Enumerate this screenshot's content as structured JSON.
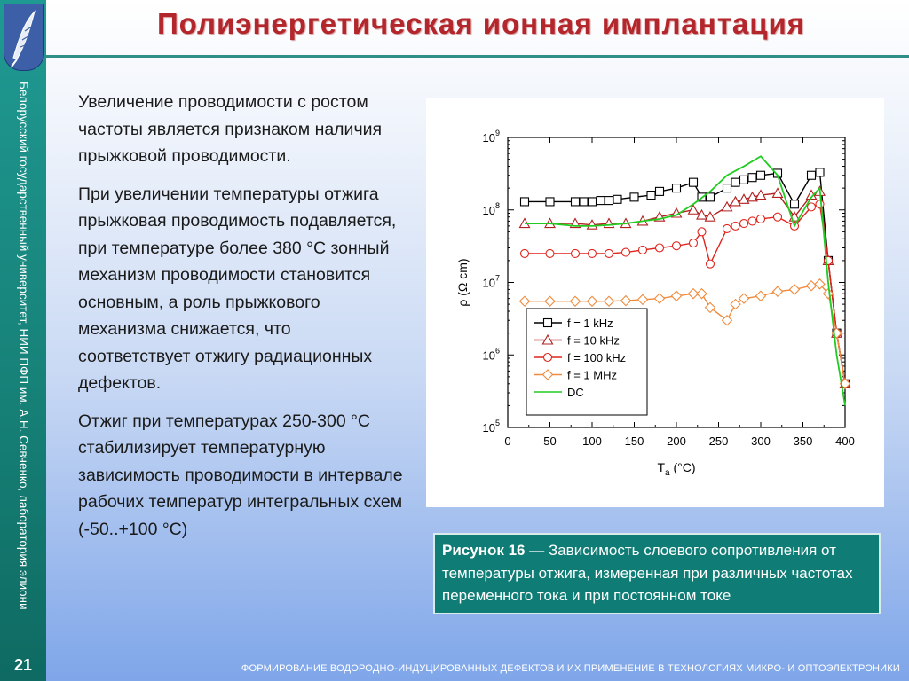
{
  "slide": {
    "title": "Полиэнергетическая ионная имплантация",
    "sidebar_text": "Белорусский государственный университет, НИИ ПФП им. А.Н. Севченко, лаборатория элионики",
    "page_number": "21",
    "footer": "ФОРМИРОВАНИЕ ВОДОРОДНО-ИНДУЦИРОВАННЫХ ДЕФЕКТОВ И ИХ ПРИМЕНЕНИЕ В ТЕХНОЛОГИЯХ МИКРО- И ОПТОЭЛЕКТРОНИКИ",
    "paragraphs": [
      "Увеличение проводимости с ростом частоты является признаком наличия прыжковой проводимости.",
      "При увеличении температуры отжига прыжковая проводимость подавляется, при температуре более 380 °С зонный механизм проводимости становится основным, а роль прыжкового механизма снижается, что соответствует отжигу радиационных дефектов.",
      "Отжиг при температурах 250-300 °С стабилизирует температурную зависимость проводимости в интервале рабочих температур интегральных схем (-50..+100 °С)"
    ],
    "caption_bold": "Рисунок 16",
    "caption_text": " — Зависимость слоевого сопротивления от температуры отжига, измеренная при различных частотах переменного тока и при постоянном токе",
    "colors": {
      "sidebar": "#168076",
      "title": "#b3262b",
      "caption_bg": "#0f7d75"
    }
  },
  "chart_data": {
    "type": "line",
    "xlabel_main": "T",
    "xlabel_sub": "a",
    "xlabel_unit": " (°C)",
    "ylabel": "ρ (Ω cm)",
    "xlim": [
      0,
      400
    ],
    "ylim_log10": [
      5,
      9
    ],
    "y_scale": "log",
    "x_ticks": [
      0,
      50,
      100,
      150,
      200,
      250,
      300,
      350,
      400
    ],
    "y_ticks_exp": [
      5,
      6,
      7,
      8,
      9
    ],
    "y_tick_base": "10",
    "legend_position": "bottom-left",
    "series": [
      {
        "name": "f = 1 kHz",
        "color": "#000000",
        "marker": "square",
        "x": [
          20,
          50,
          80,
          90,
          100,
          110,
          120,
          130,
          150,
          170,
          180,
          200,
          220,
          230,
          240,
          260,
          270,
          280,
          290,
          300,
          320,
          340,
          360,
          370,
          380,
          390,
          400
        ],
        "y": [
          130000000.0,
          130000000.0,
          130000000.0,
          130000000.0,
          130000000.0,
          135000000.0,
          135000000.0,
          140000000.0,
          150000000.0,
          160000000.0,
          180000000.0,
          200000000.0,
          240000000.0,
          150000000.0,
          150000000.0,
          200000000.0,
          240000000.0,
          260000000.0,
          280000000.0,
          300000000.0,
          320000000.0,
          120000000.0,
          300000000.0,
          330000000.0,
          20000000.0,
          2000000.0,
          400000.0
        ]
      },
      {
        "name": "f = 10 kHz",
        "color": "#b22020",
        "marker": "triangle",
        "x": [
          20,
          50,
          80,
          100,
          120,
          140,
          160,
          180,
          200,
          220,
          230,
          240,
          260,
          270,
          280,
          290,
          300,
          320,
          340,
          360,
          370,
          380,
          390,
          400
        ],
        "y": [
          65000000.0,
          65000000.0,
          65000000.0,
          62000000.0,
          65000000.0,
          65000000.0,
          70000000.0,
          80000000.0,
          90000000.0,
          100000000.0,
          85000000.0,
          80000000.0,
          110000000.0,
          130000000.0,
          140000000.0,
          150000000.0,
          160000000.0,
          170000000.0,
          80000000.0,
          160000000.0,
          180000000.0,
          20000000.0,
          2000000.0,
          400000.0
        ]
      },
      {
        "name": "f = 100 kHz",
        "color": "#e0241c",
        "marker": "circle",
        "x": [
          20,
          50,
          80,
          100,
          120,
          140,
          160,
          180,
          200,
          220,
          230,
          240,
          260,
          270,
          280,
          290,
          300,
          320,
          340,
          360,
          370,
          380,
          390,
          400
        ],
        "y": [
          25000000.0,
          25000000.0,
          25000000.0,
          25000000.0,
          25000000.0,
          26000000.0,
          28000000.0,
          30000000.0,
          32000000.0,
          35000000.0,
          50000000.0,
          18000000.0,
          55000000.0,
          60000000.0,
          65000000.0,
          70000000.0,
          75000000.0,
          80000000.0,
          60000000.0,
          110000000.0,
          120000000.0,
          20000000.0,
          2000000.0,
          400000.0
        ]
      },
      {
        "name": "f = 1 MHz",
        "color": "#f08a3c",
        "marker": "diamond",
        "x": [
          20,
          50,
          80,
          100,
          120,
          140,
          160,
          180,
          200,
          220,
          230,
          240,
          260,
          270,
          280,
          300,
          320,
          340,
          360,
          370,
          380,
          390,
          400
        ],
        "y": [
          5500000.0,
          5500000.0,
          5500000.0,
          5500000.0,
          5500000.0,
          5600000.0,
          5800000.0,
          6000000.0,
          6500000.0,
          7000000.0,
          7000000.0,
          4500000.0,
          3000000.0,
          5000000.0,
          6000000.0,
          6500000.0,
          7500000.0,
          8000000.0,
          9000000.0,
          9500000.0,
          7000000.0,
          2000000.0,
          400000.0
        ]
      },
      {
        "name": "DC",
        "color": "#22cc22",
        "marker": "none",
        "x": [
          20,
          50,
          80,
          100,
          120,
          140,
          160,
          180,
          200,
          220,
          240,
          260,
          280,
          300,
          320,
          340,
          360,
          370,
          380,
          390,
          400
        ],
        "y": [
          65000000.0,
          65000000.0,
          60000000.0,
          60000000.0,
          62000000.0,
          65000000.0,
          70000000.0,
          75000000.0,
          85000000.0,
          120000000.0,
          180000000.0,
          300000000.0,
          400000000.0,
          550000000.0,
          300000000.0,
          60000000.0,
          150000000.0,
          200000000.0,
          10000000.0,
          1000000.0,
          200000.0
        ]
      }
    ]
  }
}
